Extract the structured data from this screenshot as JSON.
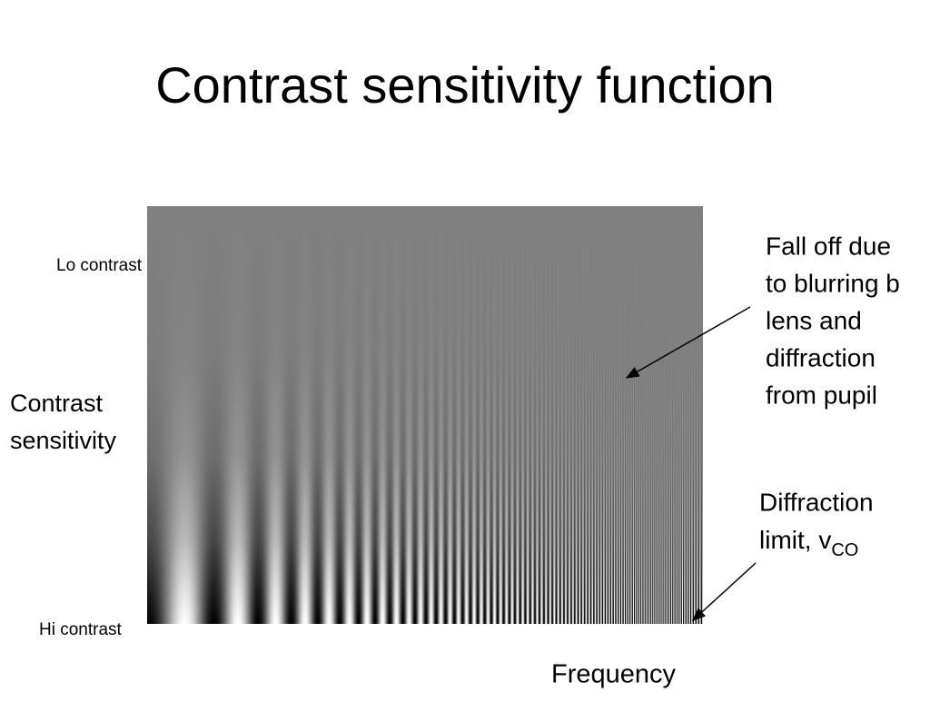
{
  "title": "Contrast sensitivity function",
  "axis": {
    "top_label": "Lo contrast",
    "bottom_label": "Hi contrast",
    "y_label": [
      "Contrast",
      "sensitivity"
    ],
    "x_label": "Frequency"
  },
  "annotations": [
    {
      "lines": [
        "Fall off due",
        "to blurring b",
        "lens and",
        "diffraction",
        "from pupil"
      ]
    },
    {
      "lines": [
        "Diffraction",
        "limit, v"
      ],
      "subscript": "CO"
    }
  ]
}
